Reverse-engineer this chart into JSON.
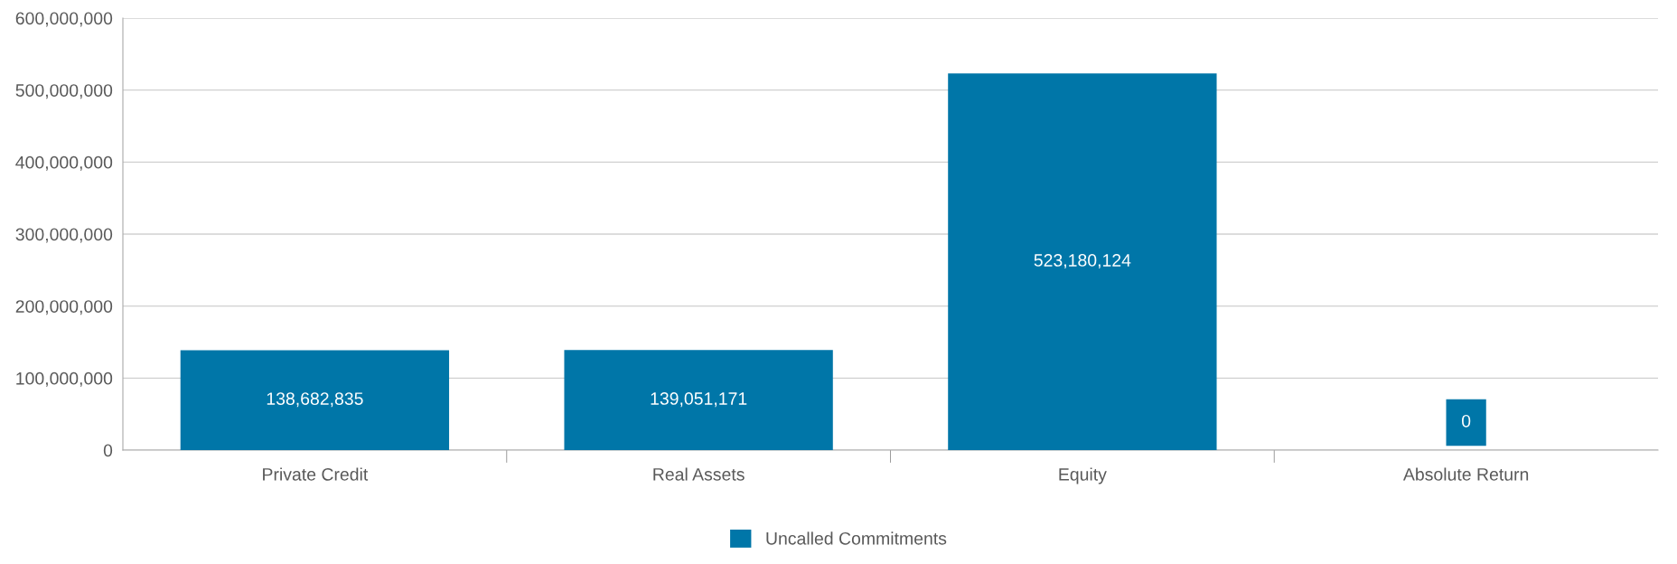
{
  "chart_data": {
    "type": "bar",
    "categories": [
      "Private Credit",
      "Real Assets",
      "Equity",
      "Absolute Return"
    ],
    "series": [
      {
        "name": "Uncalled Commitments",
        "color": "#0076a8",
        "values": [
          138682835,
          139051171,
          523180124,
          0
        ],
        "value_labels": [
          "138,682,835",
          "139,051,171",
          "523,180,124",
          "0"
        ]
      }
    ],
    "ylim": [
      0,
      600000000
    ],
    "yticks": [
      {
        "value": 0,
        "label": "0"
      },
      {
        "value": 100000000,
        "label": "100,000,000"
      },
      {
        "value": 200000000,
        "label": "200,000,000"
      },
      {
        "value": 300000000,
        "label": "300,000,000"
      },
      {
        "value": 400000000,
        "label": "400,000,000"
      },
      {
        "value": 500000000,
        "label": "500,000,000"
      },
      {
        "value": 600000000,
        "label": "600,000,000"
      }
    ],
    "grid": "y",
    "legend": "bottom"
  }
}
